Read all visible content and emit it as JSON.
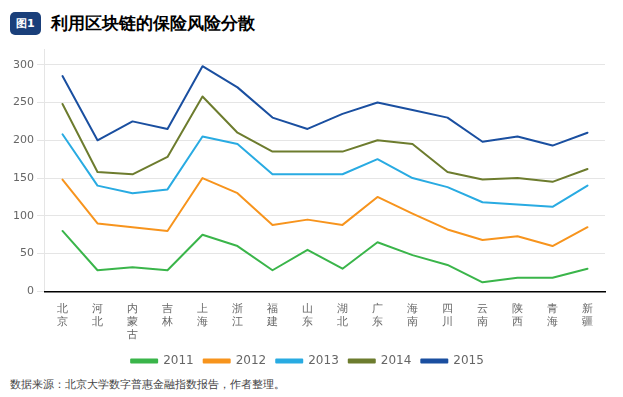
{
  "chart_data": {
    "type": "line",
    "title": "利用区块链的保险风险分散",
    "annotations": [
      "图1",
      "数据来源：北京大学数字普惠金融指数报告，作者整理。"
    ],
    "categories": [
      "北\n京",
      "河\n北",
      "内\n蒙\n古",
      "吉\n林",
      "上\n海",
      "浙\n江",
      "福\n建",
      "山\n东",
      "湖\n北",
      "广\n东",
      "海\n南",
      "四\n川",
      "云\n南",
      "陕\n西",
      "青\n海",
      "新\n疆"
    ],
    "series": [
      {
        "name": "2011",
        "color": "#3ab54a",
        "values": [
          80,
          28,
          32,
          28,
          75,
          60,
          28,
          55,
          30,
          65,
          48,
          35,
          12,
          18,
          18,
          30
        ]
      },
      {
        "name": "2012",
        "color": "#f7941d",
        "values": [
          148,
          90,
          85,
          80,
          150,
          130,
          88,
          95,
          88,
          125,
          103,
          82,
          68,
          73,
          60,
          85
        ]
      },
      {
        "name": "2013",
        "color": "#29abe2",
        "values": [
          208,
          140,
          130,
          135,
          205,
          195,
          155,
          155,
          155,
          175,
          150,
          138,
          118,
          115,
          112,
          140
        ]
      },
      {
        "name": "2014",
        "color": "#6d7c2e",
        "values": [
          248,
          158,
          155,
          178,
          258,
          210,
          185,
          185,
          185,
          200,
          195,
          158,
          148,
          150,
          145,
          162
        ]
      },
      {
        "name": "2015",
        "color": "#1a4fa0",
        "values": [
          285,
          200,
          225,
          215,
          298,
          270,
          230,
          215,
          235,
          250,
          240,
          230,
          198,
          205,
          193,
          210
        ]
      }
    ],
    "ylim": [
      0,
      320
    ],
    "yticks": [
      0,
      50,
      100,
      150,
      200,
      250,
      300
    ],
    "grid": true,
    "legend": "bottom"
  }
}
